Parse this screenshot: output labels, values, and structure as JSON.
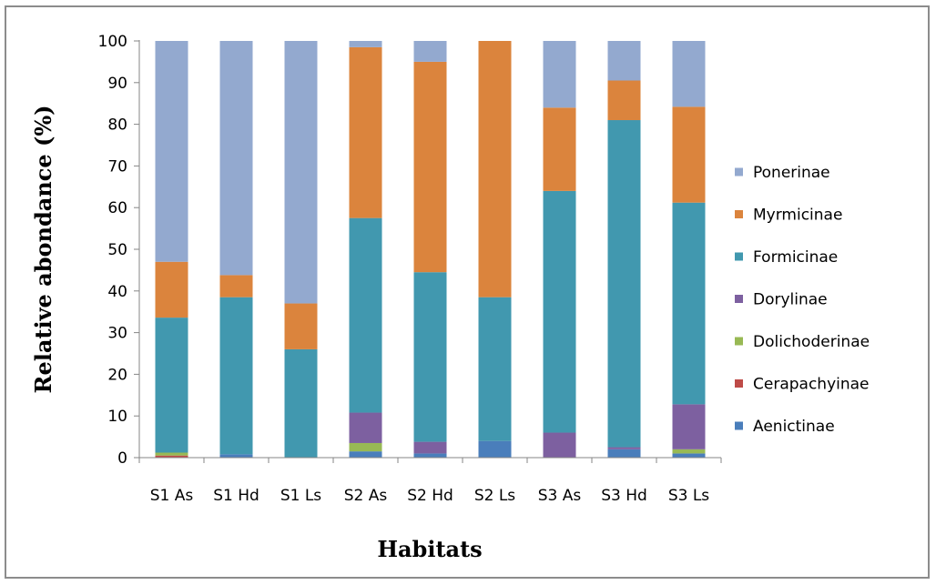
{
  "chart_data": {
    "type": "bar",
    "stacked": true,
    "title": "",
    "xlabel": "Habitats",
    "ylabel": "Relative abondance (%)",
    "ylim": [
      0,
      100
    ],
    "yticks": [
      0,
      10,
      20,
      30,
      40,
      50,
      60,
      70,
      80,
      90,
      100
    ],
    "grid": false,
    "legend_position": "right",
    "categories": [
      "S1 As",
      "S1 Hd",
      "S1 Ls",
      "S2 As",
      "S2 Hd",
      "S2 Ls",
      "S3 As",
      "S3 Hd",
      "S3 Ls"
    ],
    "series": [
      {
        "name": "Aenictinae",
        "color": "#4a7ebb",
        "values": [
          0,
          0.8,
          0,
          1.5,
          1,
          4,
          0,
          2,
          1
        ]
      },
      {
        "name": "Cerapachyinae",
        "color": "#be4b48",
        "values": [
          0.5,
          0,
          0,
          0,
          0,
          0,
          0,
          0,
          0
        ]
      },
      {
        "name": "Dolichoderinae",
        "color": "#98b954",
        "values": [
          0.7,
          0,
          0,
          2,
          0,
          0,
          0,
          0,
          1
        ]
      },
      {
        "name": "Dorylinae",
        "color": "#7d60a0",
        "values": [
          0,
          0,
          0,
          7.3,
          2.8,
          0,
          6,
          0.5,
          10.8
        ]
      },
      {
        "name": "Formicinae",
        "color": "#4198af",
        "values": [
          32.4,
          37.7,
          26,
          46.7,
          40.7,
          34.5,
          58,
          78.5,
          48.4
        ]
      },
      {
        "name": "Myrmicinae",
        "color": "#db843d",
        "values": [
          13.4,
          5.3,
          11,
          41,
          50.5,
          61.5,
          20,
          9.5,
          23
        ]
      },
      {
        "name": "Ponerinae",
        "color": "#93a9cf",
        "values": [
          53,
          56.2,
          63,
          1.5,
          5,
          0,
          16,
          9.5,
          15.8
        ]
      }
    ]
  }
}
